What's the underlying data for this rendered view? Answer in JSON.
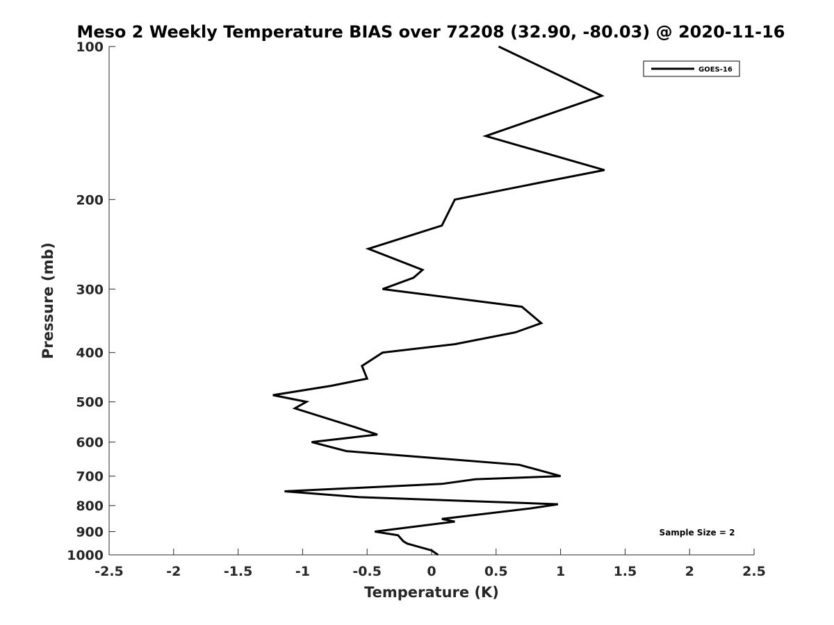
{
  "chart_data": {
    "type": "line",
    "title": "Meso 2 Weekly Temperature BIAS over 72208 (32.90, -80.03) @ 2020-11-16",
    "xlabel": "Temperature (K)",
    "ylabel": "Pressure (mb)",
    "xlim": [
      -2.5,
      2.5
    ],
    "ylim": [
      100,
      1000
    ],
    "yscale": "log",
    "yreversed": true,
    "xticks": [
      -2.5,
      -2,
      -1.5,
      -1,
      -0.5,
      0,
      0.5,
      1,
      1.5,
      2,
      2.5
    ],
    "xtick_labels": [
      "-2.5",
      "-2",
      "-1.5",
      "-1",
      "-0.5",
      "0",
      "0.5",
      "1",
      "1.5",
      "2",
      "2.5"
    ],
    "yticks": [
      100,
      200,
      300,
      400,
      500,
      600,
      700,
      800,
      900,
      1000
    ],
    "ytick_labels": [
      "100",
      "200",
      "300",
      "400",
      "500",
      "600",
      "700",
      "800",
      "900",
      "1000"
    ],
    "grid": false,
    "legend_position": "top-right",
    "series": [
      {
        "name": "GOES-16",
        "color": "#000000",
        "points": [
          [
            0.52,
            100
          ],
          [
            1.32,
            125
          ],
          [
            0.42,
            150
          ],
          [
            1.34,
            175
          ],
          [
            0.85,
            185
          ],
          [
            0.18,
            200
          ],
          [
            0.08,
            225
          ],
          [
            -0.49,
            250
          ],
          [
            -0.07,
            275
          ],
          [
            -0.14,
            285
          ],
          [
            -0.38,
            300
          ],
          [
            0.7,
            325
          ],
          [
            0.85,
            350
          ],
          [
            0.65,
            365
          ],
          [
            0.18,
            385
          ],
          [
            -0.38,
            400
          ],
          [
            -0.54,
            425
          ],
          [
            -0.5,
            450
          ],
          [
            -0.78,
            465
          ],
          [
            -1.23,
            485
          ],
          [
            -0.97,
            500
          ],
          [
            -1.06,
            515
          ],
          [
            -0.6,
            560
          ],
          [
            -0.42,
            580
          ],
          [
            -0.93,
            600
          ],
          [
            -0.66,
            625
          ],
          [
            0.68,
            665
          ],
          [
            1.0,
            700
          ],
          [
            0.34,
            710
          ],
          [
            0.08,
            725
          ],
          [
            -1.14,
            750
          ],
          [
            -0.56,
            770
          ],
          [
            0.98,
            795
          ],
          [
            0.77,
            810
          ],
          [
            0.08,
            850
          ],
          [
            0.18,
            860
          ],
          [
            -0.44,
            900
          ],
          [
            -0.26,
            915
          ],
          [
            -0.22,
            940
          ],
          [
            -0.19,
            950
          ],
          [
            0.0,
            980
          ],
          [
            0.05,
            1000
          ]
        ]
      }
    ],
    "annotations": [
      "Sample Size = 2"
    ]
  }
}
